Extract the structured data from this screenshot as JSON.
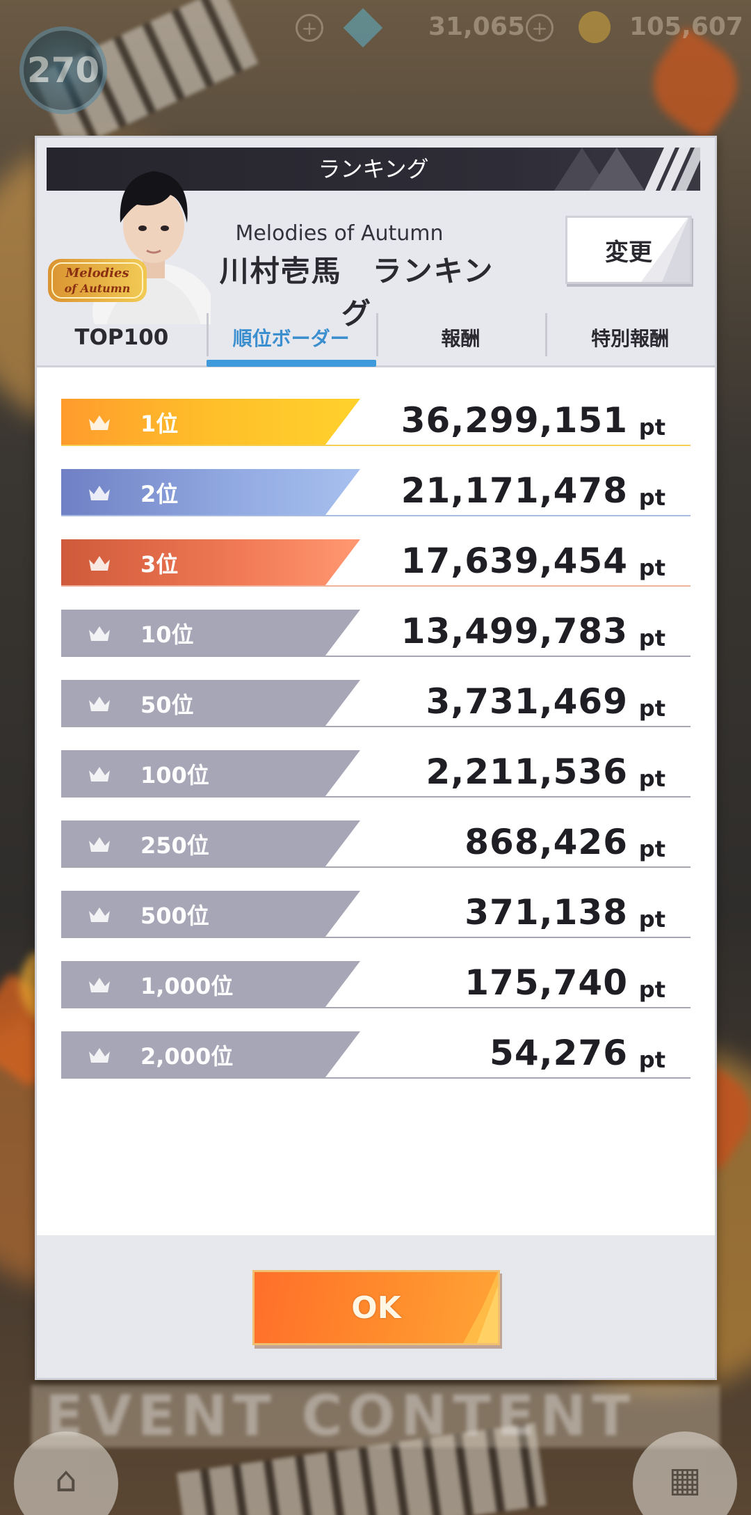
{
  "hud": {
    "level": "270",
    "currency_a": "31,065",
    "currency_b": "105,607"
  },
  "background": {
    "banner_text": "EVENT CONTENT"
  },
  "dialog": {
    "title": "ランキング",
    "event_logo_text": "Melodies of Autumn",
    "event_name": "Melodies of Autumn",
    "ranking_title": "川村壱馬　ランキング",
    "change_label": "変更",
    "tabs": [
      {
        "label": "TOP100",
        "active": false
      },
      {
        "label": "順位ボーダー",
        "active": true
      },
      {
        "label": "報酬",
        "active": false
      },
      {
        "label": "特別報酬",
        "active": false
      }
    ],
    "rows": [
      {
        "rank": "1位",
        "score": "36,299,151",
        "unit": "pt",
        "tier": "gold"
      },
      {
        "rank": "2位",
        "score": "21,171,478",
        "unit": "pt",
        "tier": "silver"
      },
      {
        "rank": "3位",
        "score": "17,639,454",
        "unit": "pt",
        "tier": "bronze"
      },
      {
        "rank": "10位",
        "score": "13,499,783",
        "unit": "pt",
        "tier": "gray"
      },
      {
        "rank": "50位",
        "score": "3,731,469",
        "unit": "pt",
        "tier": "gray"
      },
      {
        "rank": "100位",
        "score": "2,211,536",
        "unit": "pt",
        "tier": "gray"
      },
      {
        "rank": "250位",
        "score": "868,426",
        "unit": "pt",
        "tier": "gray"
      },
      {
        "rank": "500位",
        "score": "371,138",
        "unit": "pt",
        "tier": "gray"
      },
      {
        "rank": "1,000位",
        "score": "175,740",
        "unit": "pt",
        "tier": "gray"
      },
      {
        "rank": "2,000位",
        "score": "54,276",
        "unit": "pt",
        "tier": "gray"
      }
    ],
    "ok_label": "OK"
  },
  "colors": {
    "active_tab": "#3b8fcf",
    "gold": "#ffbf2a",
    "silver": "#93abe2",
    "bronze": "#f17a55",
    "gray": "#a7a6b6",
    "ok": "#ff8c2c"
  },
  "icons": {
    "crown": "crown-icon",
    "home": "home-icon",
    "menu": "grid-menu-icon"
  }
}
